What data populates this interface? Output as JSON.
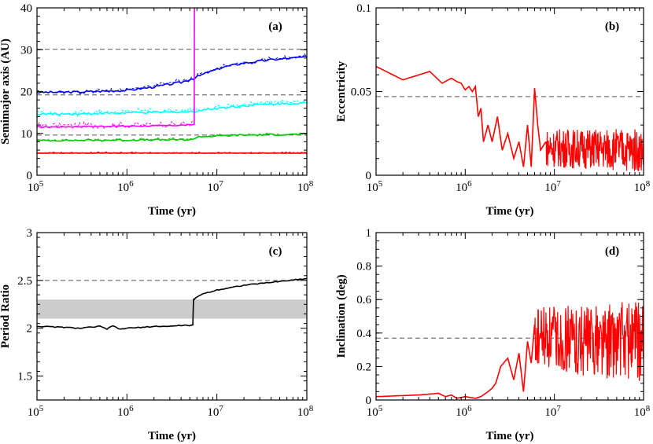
{
  "chart_data": [
    {
      "panel": "(a)",
      "type": "line",
      "xlabel": "Time (yr)",
      "ylabel": "Semimajor axis (AU)",
      "xscale": "log",
      "xlim": [
        100000,
        100000000
      ],
      "ylim": [
        0,
        40
      ],
      "xticks": [
        {
          "v": 100000,
          "base": "10",
          "exp": "5"
        },
        {
          "v": 1000000,
          "base": "10",
          "exp": "6"
        },
        {
          "v": 10000000,
          "base": "10",
          "exp": "7"
        },
        {
          "v": 100000000,
          "base": "10",
          "exp": "8"
        }
      ],
      "yticks": [
        {
          "v": 0,
          "label": "0"
        },
        {
          "v": 10,
          "label": "10"
        },
        {
          "v": 20,
          "label": "20"
        },
        {
          "v": 30,
          "label": "30"
        },
        {
          "v": 40,
          "label": "40"
        }
      ],
      "hlines": [
        {
          "y": 30.1,
          "color": "#555555"
        },
        {
          "y": 19.2,
          "color": "#555555"
        },
        {
          "y": 9.6,
          "color": "#555555"
        },
        {
          "y": 5.2,
          "color": "#555555"
        }
      ],
      "series": [
        {
          "color": "#0000ff",
          "x": [
            100000,
            300000,
            1000000,
            2000000,
            4000000,
            5500000,
            8000000,
            12000000,
            20000000,
            40000000,
            60000000,
            100000000
          ],
          "y": [
            19.8,
            19.9,
            20.3,
            21.1,
            22.2,
            23.2,
            24.6,
            25.9,
            26.8,
            27.6,
            27.9,
            28.3
          ],
          "noise": 0.5,
          "dashed_offset": 0.6
        },
        {
          "color": "#00ffff",
          "x": [
            100000,
            300000,
            1000000,
            3000000,
            5500000,
            5700000,
            8000000,
            15000000,
            30000000,
            100000000
          ],
          "y": [
            14.6,
            14.7,
            14.9,
            15.1,
            15.2,
            15.3,
            15.8,
            16.4,
            16.9,
            17.3
          ],
          "noise": 0.5,
          "dashed_offset": 0.8
        },
        {
          "color": "#ff00ff",
          "x": [
            100000,
            500000,
            2000000,
            5000000,
            5600000,
            5620000
          ],
          "y": [
            11.5,
            11.7,
            11.8,
            12.0,
            12.2,
            40.0
          ],
          "noise": 0.3,
          "dashed_offset": 0.9
        },
        {
          "color": "#00cc00",
          "x": [
            100000,
            1000000,
            5500000,
            6000000,
            20000000,
            100000000
          ],
          "y": [
            8.3,
            8.4,
            8.5,
            9.2,
            9.6,
            9.8
          ],
          "noise": 0.4,
          "dashed_offset": 0.3
        },
        {
          "color": "#ff0000",
          "x": [
            100000,
            1000000,
            5500000,
            6000000,
            100000000
          ],
          "y": [
            5.3,
            5.3,
            5.3,
            5.3,
            5.3
          ],
          "noise": 0.05,
          "dashed_offset": 0.25
        }
      ]
    },
    {
      "panel": "(b)",
      "type": "line",
      "xlabel": "Time (yr)",
      "ylabel": "Eccentricity",
      "xscale": "log",
      "xlim": [
        100000,
        100000000
      ],
      "ylim": [
        0,
        0.1
      ],
      "xticks": [
        {
          "v": 100000,
          "base": "10",
          "exp": "5"
        },
        {
          "v": 1000000,
          "base": "10",
          "exp": "6"
        },
        {
          "v": 10000000,
          "base": "10",
          "exp": "7"
        },
        {
          "v": 100000000,
          "base": "10",
          "exp": "8"
        }
      ],
      "yticks": [
        {
          "v": 0,
          "label": "0"
        },
        {
          "v": 0.05,
          "label": "0.05"
        },
        {
          "v": 0.1,
          "label": "0.1"
        }
      ],
      "hlines": [
        {
          "y": 0.047,
          "color": "#555555"
        }
      ],
      "series": [
        {
          "color": "#ff0000",
          "x": [
            100000,
            200000,
            400000,
            550000,
            700000,
            800000,
            900000,
            1000000,
            1100000,
            1200000,
            1300000,
            1400000,
            1500000,
            1600000,
            1800000,
            2000000,
            2300000,
            2600000,
            3000000,
            3500000,
            4000000,
            4500000,
            5000000,
            5500000,
            6000000,
            6500000,
            7000000,
            8000000
          ],
          "y": [
            0.065,
            0.057,
            0.062,
            0.055,
            0.058,
            0.056,
            0.055,
            0.051,
            0.053,
            0.05,
            0.053,
            0.035,
            0.04,
            0.02,
            0.03,
            0.02,
            0.035,
            0.015,
            0.025,
            0.01,
            0.02,
            0.005,
            0.03,
            0.005,
            0.052,
            0.03,
            0.015,
            0.02
          ]
        },
        {
          "color": "#ff0000",
          "band": true,
          "x": [
            8000000,
            100000000
          ],
          "lo": [
            0.005,
            0.002
          ],
          "hi": [
            0.028,
            0.028
          ]
        }
      ]
    },
    {
      "panel": "(c)",
      "type": "line",
      "xlabel": "Time (yr)",
      "ylabel": "Period Ratio",
      "xscale": "log",
      "xlim": [
        100000,
        100000000
      ],
      "ylim": [
        1.25,
        3.0
      ],
      "xticks": [
        {
          "v": 100000,
          "base": "10",
          "exp": "5"
        },
        {
          "v": 1000000,
          "base": "10",
          "exp": "6"
        },
        {
          "v": 10000000,
          "base": "10",
          "exp": "7"
        },
        {
          "v": 100000000,
          "base": "10",
          "exp": "8"
        }
      ],
      "yticks": [
        {
          "v": 1.5,
          "label": "1.5"
        },
        {
          "v": 2.0,
          "label": "2"
        },
        {
          "v": 2.5,
          "label": "2.5"
        },
        {
          "v": 3.0,
          "label": "3"
        }
      ],
      "shaded_band": {
        "y_lo": 2.1,
        "y_hi": 2.3,
        "color": "#cccccc"
      },
      "hlines": [
        {
          "y": 2.5,
          "color": "#555555"
        }
      ],
      "series": [
        {
          "color": "#000000",
          "x": [
            100000,
            200000,
            300000,
            500000,
            600000,
            700000,
            800000,
            1000000,
            1500000,
            2000000,
            3000000,
            4000000,
            5000000,
            5400000,
            5500000,
            5600000,
            6000000,
            7000000,
            10000000,
            20000000,
            40000000,
            100000000
          ],
          "y": [
            2.02,
            2.01,
            2.0,
            2.02,
            1.99,
            2.03,
            1.99,
            2.0,
            2.01,
            2.02,
            2.02,
            2.03,
            2.03,
            2.03,
            2.3,
            2.3,
            2.33,
            2.36,
            2.4,
            2.45,
            2.48,
            2.52
          ],
          "noise": 0.01
        }
      ]
    },
    {
      "panel": "(d)",
      "type": "line",
      "xlabel": "Time (yr)",
      "ylabel": "Inclination (deg)",
      "xscale": "log",
      "xlim": [
        100000,
        100000000
      ],
      "ylim": [
        0,
        1
      ],
      "xticks": [
        {
          "v": 100000,
          "base": "10",
          "exp": "5"
        },
        {
          "v": 1000000,
          "base": "10",
          "exp": "6"
        },
        {
          "v": 10000000,
          "base": "10",
          "exp": "7"
        },
        {
          "v": 100000000,
          "base": "10",
          "exp": "8"
        }
      ],
      "yticks": [
        {
          "v": 0,
          "label": "0"
        },
        {
          "v": 0.2,
          "label": "0.2"
        },
        {
          "v": 0.4,
          "label": "0.4"
        },
        {
          "v": 0.6,
          "label": "0.6"
        },
        {
          "v": 0.8,
          "label": "0.8"
        },
        {
          "v": 1.0,
          "label": "1"
        }
      ],
      "hlines": [
        {
          "y": 0.37,
          "color": "#555555"
        }
      ],
      "series": [
        {
          "color": "#ff0000",
          "x": [
            100000,
            300000,
            500000,
            600000,
            700000,
            800000,
            1000000,
            1300000,
            1500000,
            1800000,
            2000000,
            2200000,
            2500000,
            3000000,
            3500000,
            4000000,
            4500000,
            5000000,
            5500000,
            6000000
          ],
          "y": [
            0.02,
            0.03,
            0.04,
            0.02,
            0.03,
            0.01,
            0.02,
            0.01,
            0.02,
            0.05,
            0.07,
            0.1,
            0.2,
            0.25,
            0.12,
            0.28,
            0.05,
            0.35,
            0.22,
            0.45
          ]
        },
        {
          "color": "#ff0000",
          "band": true,
          "x": [
            6000000,
            100000000
          ],
          "lo": [
            0.18,
            0.1
          ],
          "hi": [
            0.55,
            0.6
          ]
        }
      ]
    }
  ]
}
